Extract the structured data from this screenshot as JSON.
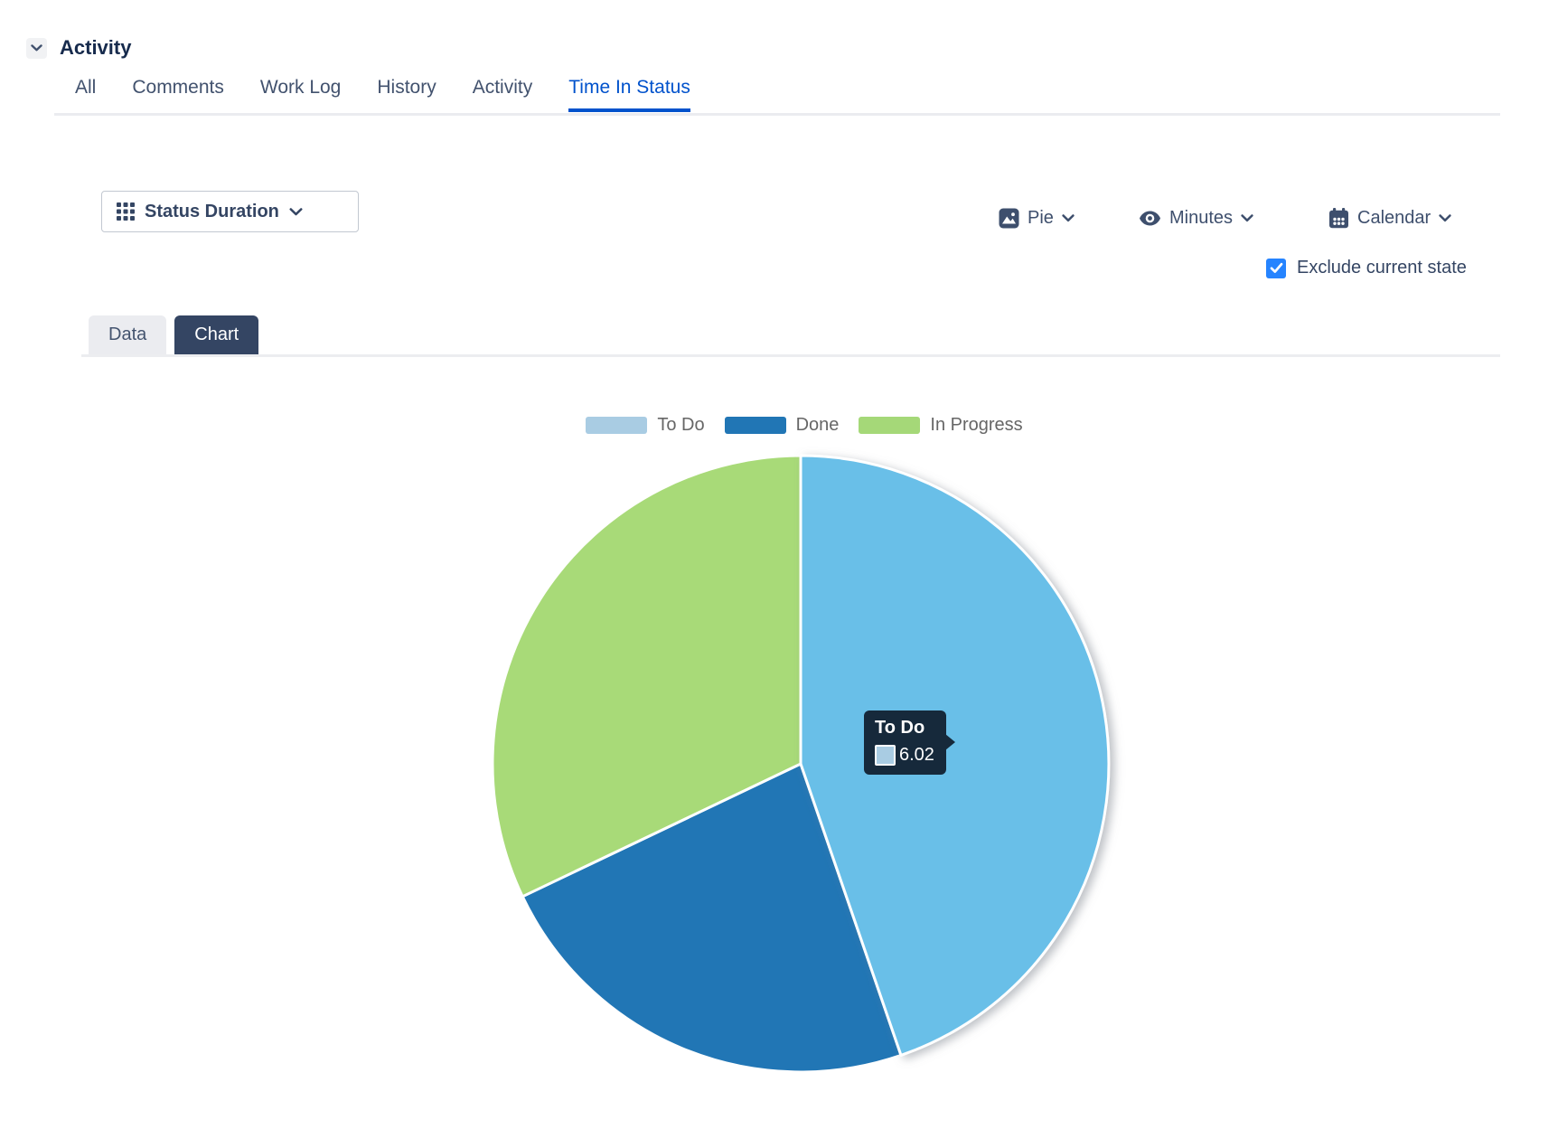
{
  "header": {
    "title": "Activity"
  },
  "activity_tabs": {
    "items": [
      "All",
      "Comments",
      "Work Log",
      "History",
      "Activity",
      "Time In Status"
    ],
    "active": "Time In Status"
  },
  "toolbar": {
    "group_by_label": "Status Duration",
    "chart_type_label": "Pie",
    "unit_label": "Minutes",
    "calendar_label": "Calendar",
    "exclude_label": "Exclude current state",
    "exclude_checked": true
  },
  "view_tabs": {
    "items": [
      "Data",
      "Chart"
    ],
    "active": "Chart"
  },
  "chart_data": {
    "type": "pie",
    "title": "",
    "unit": "Minutes",
    "legend_position": "top",
    "legend": [
      "To Do",
      "Done",
      "In Progress"
    ],
    "series": [
      {
        "name": "To Do",
        "value": 6.02,
        "value_is_estimate": false,
        "percent": 44.7,
        "start_deg": 0,
        "end_deg": 161,
        "color": "#69BFE8",
        "legend_color": "#A9CCE3",
        "highlighted": true
      },
      {
        "name": "Done",
        "value": 3.1,
        "value_is_estimate": true,
        "percent": 23.2,
        "start_deg": 161,
        "end_deg": 244.5,
        "color": "#2176B5",
        "legend_color": "#2176B5",
        "highlighted": false
      },
      {
        "name": "In Progress",
        "value": 4.3,
        "value_is_estimate": true,
        "percent": 32.1,
        "start_deg": 244.5,
        "end_deg": 360,
        "color": "#A8DA78",
        "legend_color": "#A5D878",
        "highlighted": false
      }
    ],
    "tooltip": {
      "title": "To Do",
      "value": "6.02",
      "swatch_color": "#A9CCE3"
    }
  },
  "colors": {
    "accent_blue": "#0052CC",
    "checkbox_blue": "#2684FF",
    "navy": "#344563",
    "heading": "#172B4D",
    "tab_text": "#42526E",
    "legend_text": "#666666",
    "tooltip_bg": "#16293B",
    "pill_bg": "#EBECF0"
  }
}
